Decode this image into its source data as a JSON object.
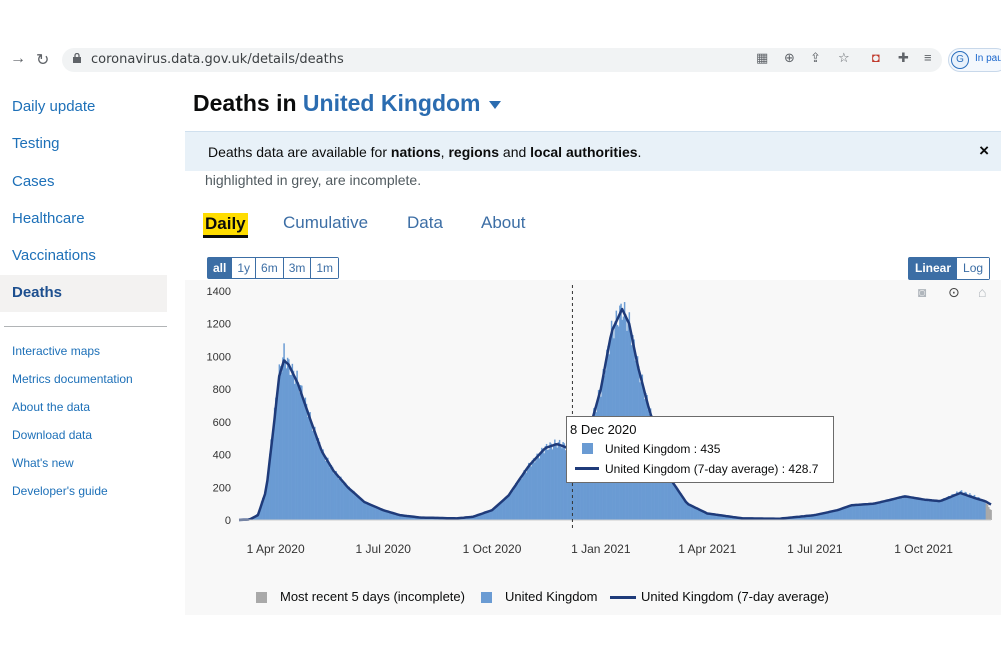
{
  "browser": {
    "url": "coronavirus.data.gov.uk/details/deaths",
    "profile_initial": "G",
    "profile_text": "In pau"
  },
  "sidebar": {
    "items": [
      {
        "label": "Daily update"
      },
      {
        "label": "Testing"
      },
      {
        "label": "Cases"
      },
      {
        "label": "Healthcare"
      },
      {
        "label": "Vaccinations"
      },
      {
        "label": "Deaths",
        "active": true
      }
    ],
    "links": [
      {
        "label": "Interactive maps"
      },
      {
        "label": "Metrics documentation"
      },
      {
        "label": "About the data"
      },
      {
        "label": "Download data"
      },
      {
        "label": "What's new"
      },
      {
        "label": "Developer's guide"
      }
    ]
  },
  "header": {
    "title_prefix": "Deaths in",
    "area": "United Kingdom"
  },
  "banner": {
    "text_1": "Deaths data are available for ",
    "bold_1": "nations",
    "text_2": ", ",
    "bold_2": "regions",
    "text_3": " and ",
    "bold_3": "local authorities",
    "text_4": ".",
    "close": "×"
  },
  "subtext": "highlighted in grey, are incomplete.",
  "tabs": [
    {
      "label": "Daily",
      "active": true
    },
    {
      "label": "Cumulative"
    },
    {
      "label": "Data"
    },
    {
      "label": "About"
    }
  ],
  "range_buttons": [
    {
      "label": "all",
      "active": true
    },
    {
      "label": "1y"
    },
    {
      "label": "6m"
    },
    {
      "label": "3m"
    },
    {
      "label": "1m"
    }
  ],
  "scale_buttons": [
    {
      "label": "Linear",
      "active": true
    },
    {
      "label": "Log"
    }
  ],
  "tooltip": {
    "date": "8 Dec 2020",
    "row1": "United Kingdom  : 435",
    "row2": "United Kingdom (7-day average) : 428.7"
  },
  "legend": {
    "incomplete": "Most recent 5 days (incomplete)",
    "daily": "United Kingdom",
    "average": "United Kingdom (7-day average)"
  },
  "colors": {
    "bar": "#6a9bd3",
    "bar_incomplete": "#a9a9a9",
    "average_line": "#1f3b7a",
    "accent": "#3c6ea5"
  },
  "chart_data": {
    "type": "bar",
    "title": "",
    "xlabel": "",
    "ylabel": "",
    "ylim": [
      0,
      1400
    ],
    "yticks": [
      0,
      200,
      400,
      600,
      800,
      1000,
      1200,
      1400
    ],
    "xticks": [
      "1 Apr 2020",
      "1 Jul 2020",
      "1 Oct 2020",
      "1 Jan 2021",
      "1 Apr 2021",
      "1 Jul 2021",
      "1 Oct 2021"
    ],
    "x_start": "2020-03-01",
    "x_end": "2021-11-27",
    "grid": false,
    "legend_position": "bottom",
    "series": [
      {
        "name": "United Kingdom",
        "kind": "bar",
        "points": [
          [
            "2020-03-01",
            0
          ],
          [
            "2020-03-10",
            5
          ],
          [
            "2020-03-17",
            40
          ],
          [
            "2020-03-24",
            200
          ],
          [
            "2020-03-30",
            600
          ],
          [
            "2020-04-04",
            900
          ],
          [
            "2020-04-08",
            1020
          ],
          [
            "2020-04-12",
            940
          ],
          [
            "2020-04-20",
            850
          ],
          [
            "2020-05-01",
            600
          ],
          [
            "2020-05-10",
            420
          ],
          [
            "2020-05-20",
            300
          ],
          [
            "2020-06-01",
            200
          ],
          [
            "2020-06-15",
            110
          ],
          [
            "2020-07-01",
            60
          ],
          [
            "2020-07-15",
            30
          ],
          [
            "2020-08-01",
            15
          ],
          [
            "2020-09-01",
            10
          ],
          [
            "2020-09-15",
            20
          ],
          [
            "2020-10-01",
            60
          ],
          [
            "2020-10-15",
            150
          ],
          [
            "2020-11-01",
            330
          ],
          [
            "2020-11-15",
            440
          ],
          [
            "2020-11-25",
            470
          ],
          [
            "2020-12-08",
            435
          ],
          [
            "2020-12-20",
            500
          ],
          [
            "2021-01-01",
            800
          ],
          [
            "2021-01-10",
            1150
          ],
          [
            "2021-01-19",
            1290
          ],
          [
            "2021-01-25",
            1200
          ],
          [
            "2021-02-01",
            950
          ],
          [
            "2021-02-10",
            700
          ],
          [
            "2021-02-20",
            450
          ],
          [
            "2021-03-01",
            250
          ],
          [
            "2021-03-15",
            100
          ],
          [
            "2021-04-01",
            40
          ],
          [
            "2021-05-01",
            10
          ],
          [
            "2021-06-01",
            8
          ],
          [
            "2021-07-01",
            30
          ],
          [
            "2021-07-20",
            60
          ],
          [
            "2021-08-01",
            90
          ],
          [
            "2021-08-20",
            100
          ],
          [
            "2021-09-01",
            120
          ],
          [
            "2021-09-15",
            145
          ],
          [
            "2021-10-01",
            125
          ],
          [
            "2021-10-15",
            115
          ],
          [
            "2021-11-01",
            175
          ],
          [
            "2021-11-15",
            140
          ],
          [
            "2021-11-22",
            110
          ],
          [
            "2021-11-27",
            60
          ]
        ]
      },
      {
        "name": "United Kingdom (7-day average)",
        "kind": "line",
        "points": [
          [
            "2020-03-01",
            0
          ],
          [
            "2020-03-10",
            3
          ],
          [
            "2020-03-17",
            30
          ],
          [
            "2020-03-24",
            180
          ],
          [
            "2020-03-30",
            550
          ],
          [
            "2020-04-04",
            880
          ],
          [
            "2020-04-08",
            975
          ],
          [
            "2020-04-12",
            950
          ],
          [
            "2020-04-20",
            830
          ],
          [
            "2020-05-01",
            600
          ],
          [
            "2020-05-10",
            420
          ],
          [
            "2020-05-20",
            300
          ],
          [
            "2020-06-01",
            200
          ],
          [
            "2020-06-15",
            110
          ],
          [
            "2020-07-01",
            60
          ],
          [
            "2020-07-15",
            30
          ],
          [
            "2020-08-01",
            15
          ],
          [
            "2020-09-01",
            10
          ],
          [
            "2020-09-15",
            20
          ],
          [
            "2020-10-01",
            60
          ],
          [
            "2020-10-15",
            150
          ],
          [
            "2020-11-01",
            330
          ],
          [
            "2020-11-15",
            440
          ],
          [
            "2020-11-25",
            465
          ],
          [
            "2020-12-08",
            428.7
          ],
          [
            "2020-12-20",
            490
          ],
          [
            "2021-01-01",
            800
          ],
          [
            "2021-01-10",
            1150
          ],
          [
            "2021-01-19",
            1290
          ],
          [
            "2021-01-25",
            1200
          ],
          [
            "2021-02-01",
            950
          ],
          [
            "2021-02-10",
            700
          ],
          [
            "2021-02-20",
            450
          ],
          [
            "2021-03-01",
            250
          ],
          [
            "2021-03-15",
            100
          ],
          [
            "2021-04-01",
            40
          ],
          [
            "2021-05-01",
            10
          ],
          [
            "2021-06-01",
            8
          ],
          [
            "2021-07-01",
            30
          ],
          [
            "2021-07-20",
            60
          ],
          [
            "2021-08-01",
            90
          ],
          [
            "2021-08-20",
            100
          ],
          [
            "2021-09-01",
            120
          ],
          [
            "2021-09-15",
            145
          ],
          [
            "2021-10-01",
            125
          ],
          [
            "2021-10-15",
            115
          ],
          [
            "2021-11-01",
            165
          ],
          [
            "2021-11-15",
            130
          ],
          [
            "2021-11-22",
            115
          ],
          [
            "2021-11-27",
            95
          ]
        ]
      }
    ],
    "incomplete_days": 5,
    "highlight_date": "2020-12-08"
  }
}
